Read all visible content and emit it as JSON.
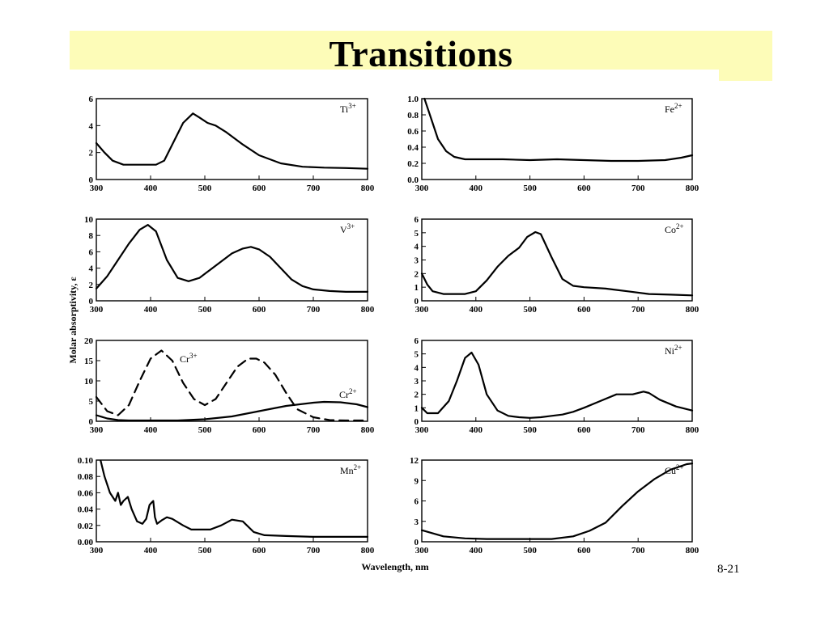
{
  "slide": {
    "title": "Transitions",
    "page_number": "8-21"
  },
  "shared": {
    "ylabel": "Molar absorptivity, ε",
    "xlabel": "Wavelength, nm"
  },
  "chart_data": [
    {
      "type": "line",
      "ion": "Ti",
      "charge": "3+",
      "xlim": [
        300,
        800
      ],
      "ylim": [
        0,
        6
      ],
      "xticks": [
        "300",
        "400",
        "500",
        "600",
        "700",
        "800"
      ],
      "yticks": [
        "0",
        "2",
        "4",
        "6"
      ],
      "series": [
        {
          "style": "solid",
          "x": [
            300,
            315,
            330,
            350,
            380,
            410,
            425,
            440,
            460,
            478,
            490,
            505,
            520,
            540,
            570,
            600,
            640,
            680,
            720,
            760,
            800
          ],
          "y": [
            2.7,
            2.0,
            1.4,
            1.1,
            1.1,
            1.1,
            1.4,
            2.6,
            4.2,
            4.9,
            4.6,
            4.2,
            4.0,
            3.5,
            2.6,
            1.8,
            1.2,
            0.95,
            0.88,
            0.85,
            0.8
          ]
        }
      ]
    },
    {
      "type": "line",
      "ion": "Fe",
      "charge": "2+",
      "xlim": [
        300,
        800
      ],
      "ylim": [
        0,
        1.0
      ],
      "xticks": [
        "300",
        "400",
        "500",
        "600",
        "700",
        "800"
      ],
      "yticks": [
        "0.0",
        "0.2",
        "0.4",
        "0.6",
        "0.8",
        "1.0"
      ],
      "series": [
        {
          "style": "solid",
          "x": [
            305,
            315,
            330,
            345,
            360,
            380,
            400,
            450,
            500,
            550,
            600,
            650,
            700,
            750,
            780,
            800
          ],
          "y": [
            1.0,
            0.8,
            0.5,
            0.35,
            0.28,
            0.25,
            0.25,
            0.25,
            0.24,
            0.25,
            0.24,
            0.23,
            0.23,
            0.24,
            0.27,
            0.3
          ]
        }
      ]
    },
    {
      "type": "line",
      "ion": "V",
      "charge": "3+",
      "xlim": [
        300,
        800
      ],
      "ylim": [
        0,
        10
      ],
      "xticks": [
        "300",
        "400",
        "500",
        "600",
        "700",
        "800"
      ],
      "yticks": [
        "0",
        "2",
        "4",
        "6",
        "8",
        "10"
      ],
      "series": [
        {
          "style": "solid",
          "x": [
            300,
            320,
            340,
            360,
            380,
            395,
            410,
            430,
            450,
            470,
            490,
            510,
            530,
            550,
            570,
            585,
            600,
            620,
            640,
            660,
            680,
            700,
            730,
            760,
            800
          ],
          "y": [
            1.5,
            3.0,
            5.0,
            7.0,
            8.7,
            9.3,
            8.5,
            5.0,
            2.8,
            2.4,
            2.8,
            3.8,
            4.8,
            5.8,
            6.4,
            6.6,
            6.3,
            5.4,
            4.0,
            2.6,
            1.8,
            1.4,
            1.2,
            1.1,
            1.1
          ]
        }
      ]
    },
    {
      "type": "line",
      "ion": "Co",
      "charge": "2+",
      "xlim": [
        300,
        800
      ],
      "ylim": [
        0,
        6
      ],
      "xticks": [
        "300",
        "400",
        "500",
        "600",
        "700",
        "800"
      ],
      "yticks": [
        "0",
        "1",
        "2",
        "3",
        "4",
        "5",
        "6"
      ],
      "series": [
        {
          "style": "solid",
          "x": [
            300,
            310,
            320,
            340,
            360,
            380,
            400,
            420,
            440,
            460,
            480,
            495,
            510,
            520,
            540,
            560,
            580,
            600,
            640,
            680,
            720,
            760,
            800
          ],
          "y": [
            2.0,
            1.2,
            0.7,
            0.5,
            0.5,
            0.5,
            0.7,
            1.5,
            2.5,
            3.3,
            3.9,
            4.7,
            5.05,
            4.9,
            3.2,
            1.6,
            1.1,
            1.0,
            0.9,
            0.7,
            0.5,
            0.45,
            0.4
          ]
        }
      ]
    },
    {
      "type": "line",
      "ion": "Cr",
      "charge": "3+ / 2+",
      "xlim": [
        300,
        800
      ],
      "ylim": [
        0,
        20
      ],
      "xticks": [
        "300",
        "400",
        "500",
        "600",
        "700",
        "800"
      ],
      "yticks": [
        "0",
        "5",
        "10",
        "15",
        "20"
      ],
      "series": [
        {
          "name": "Cr3+",
          "style": "dashed",
          "x": [
            300,
            320,
            340,
            360,
            380,
            400,
            420,
            440,
            460,
            480,
            500,
            520,
            540,
            560,
            580,
            595,
            610,
            630,
            650,
            670,
            700,
            730,
            760,
            800
          ],
          "y": [
            6.0,
            2.5,
            1.5,
            4.0,
            10.0,
            15.5,
            17.5,
            15.0,
            9.5,
            5.5,
            4.0,
            5.5,
            9.5,
            13.5,
            15.5,
            15.5,
            14.5,
            11.5,
            7.0,
            3.0,
            1.0,
            0.3,
            0.2,
            0.2
          ]
        },
        {
          "name": "Cr2+",
          "style": "solid",
          "x": [
            300,
            320,
            340,
            360,
            400,
            450,
            500,
            550,
            600,
            650,
            700,
            720,
            750,
            780,
            800
          ],
          "y": [
            1.5,
            0.7,
            0.3,
            0.2,
            0.2,
            0.2,
            0.5,
            1.2,
            2.5,
            3.8,
            4.6,
            4.8,
            4.7,
            4.2,
            3.5
          ]
        }
      ]
    },
    {
      "type": "line",
      "ion": "Ni",
      "charge": "2+",
      "xlim": [
        300,
        800
      ],
      "ylim": [
        0,
        6
      ],
      "xticks": [
        "300",
        "400",
        "500",
        "600",
        "700",
        "800"
      ],
      "yticks": [
        "0",
        "1",
        "2",
        "3",
        "4",
        "5",
        "6"
      ],
      "series": [
        {
          "style": "solid",
          "x": [
            300,
            310,
            330,
            350,
            365,
            380,
            392,
            405,
            420,
            440,
            460,
            480,
            500,
            520,
            540,
            560,
            580,
            600,
            630,
            660,
            690,
            710,
            720,
            740,
            770,
            800
          ],
          "y": [
            1.0,
            0.6,
            0.6,
            1.5,
            3.0,
            4.7,
            5.1,
            4.2,
            2.0,
            0.8,
            0.4,
            0.3,
            0.25,
            0.3,
            0.4,
            0.5,
            0.7,
            1.0,
            1.5,
            2.0,
            2.0,
            2.2,
            2.1,
            1.6,
            1.1,
            0.8
          ]
        }
      ]
    },
    {
      "type": "line",
      "ion": "Mn",
      "charge": "2+",
      "xlim": [
        300,
        800
      ],
      "ylim": [
        0,
        0.1
      ],
      "xticks": [
        "300",
        "400",
        "500",
        "600",
        "700",
        "800"
      ],
      "yticks": [
        "0.00",
        "0.02",
        "0.04",
        "0.06",
        "0.08",
        "0.10"
      ],
      "series": [
        {
          "style": "solid",
          "x": [
            308,
            315,
            325,
            335,
            340,
            345,
            350,
            358,
            365,
            375,
            385,
            392,
            398,
            402,
            405,
            408,
            412,
            420,
            430,
            440,
            460,
            475,
            490,
            510,
            530,
            550,
            570,
            590,
            610,
            650,
            700,
            800
          ],
          "y": [
            0.099,
            0.08,
            0.06,
            0.05,
            0.06,
            0.045,
            0.05,
            0.055,
            0.04,
            0.025,
            0.022,
            0.028,
            0.045,
            0.048,
            0.05,
            0.03,
            0.022,
            0.026,
            0.03,
            0.028,
            0.02,
            0.015,
            0.015,
            0.015,
            0.02,
            0.027,
            0.025,
            0.012,
            0.008,
            0.007,
            0.006,
            0.006
          ]
        }
      ]
    },
    {
      "type": "line",
      "ion": "Cu",
      "charge": "2+",
      "xlim": [
        300,
        800
      ],
      "ylim": [
        0,
        12
      ],
      "xticks": [
        "300",
        "400",
        "500",
        "600",
        "700",
        "800"
      ],
      "yticks": [
        "0",
        "3",
        "6",
        "9",
        "12"
      ],
      "series": [
        {
          "style": "solid",
          "x": [
            300,
            340,
            380,
            420,
            460,
            500,
            540,
            580,
            610,
            640,
            670,
            700,
            730,
            760,
            790,
            800
          ],
          "y": [
            1.7,
            0.8,
            0.5,
            0.4,
            0.4,
            0.4,
            0.4,
            0.8,
            1.6,
            2.8,
            5.2,
            7.4,
            9.2,
            10.6,
            11.4,
            11.5
          ]
        }
      ]
    }
  ]
}
